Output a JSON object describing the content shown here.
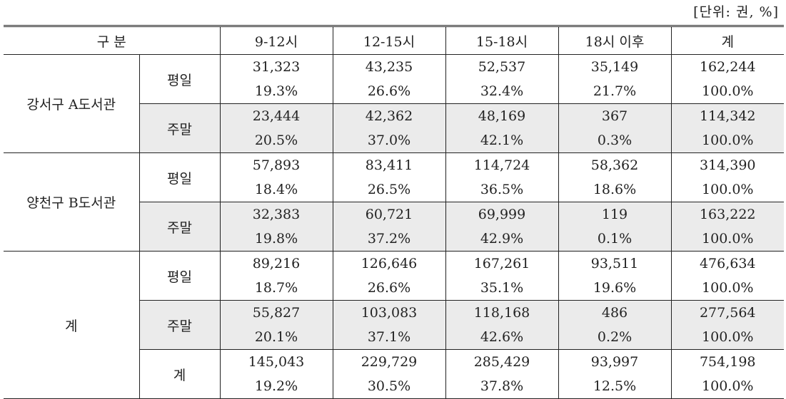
{
  "unit_note": "[단위: 권, %]",
  "header": {
    "group_col": "구 분",
    "columns": [
      "9-12시",
      "12-15시",
      "15-18시",
      "18시 이후",
      "계"
    ]
  },
  "groups": [
    {
      "name": "강서구 A도서관",
      "rows": [
        {
          "type": "평일",
          "counts": [
            "31,323",
            "43,235",
            "52,537",
            "35,149",
            "162,244"
          ],
          "pcts": [
            "19.3%",
            "26.6%",
            "32.4%",
            "21.7%",
            "100.0%"
          ]
        },
        {
          "type": "주말",
          "counts": [
            "23,444",
            "42,362",
            "48,169",
            "367",
            "114,342"
          ],
          "pcts": [
            "20.5%",
            "37.0%",
            "42.1%",
            "0.3%",
            "100.0%"
          ]
        }
      ]
    },
    {
      "name": "양천구 B도서관",
      "rows": [
        {
          "type": "평일",
          "counts": [
            "57,893",
            "83,411",
            "114,724",
            "58,362",
            "314,390"
          ],
          "pcts": [
            "18.4%",
            "26.5%",
            "36.5%",
            "18.6%",
            "100.0%"
          ]
        },
        {
          "type": "주말",
          "counts": [
            "32,383",
            "60,721",
            "69,999",
            "119",
            "163,222"
          ],
          "pcts": [
            "19.8%",
            "37.2%",
            "42.9%",
            "0.1%",
            "100.0%"
          ]
        }
      ]
    },
    {
      "name": "계",
      "rows": [
        {
          "type": "평일",
          "counts": [
            "89,216",
            "126,646",
            "167,261",
            "93,511",
            "476,634"
          ],
          "pcts": [
            "18.7%",
            "26.6%",
            "35.1%",
            "19.6%",
            "100.0%"
          ]
        },
        {
          "type": "주말",
          "counts": [
            "55,827",
            "103,083",
            "118,168",
            "486",
            "277,564"
          ],
          "pcts": [
            "20.1%",
            "37.1%",
            "42.6%",
            "0.2%",
            "100.0%"
          ]
        },
        {
          "type": "계",
          "counts": [
            "145,043",
            "229,729",
            "285,429",
            "93,997",
            "754,198"
          ],
          "pcts": [
            "19.2%",
            "30.5%",
            "37.8%",
            "12.5%",
            "100.0%"
          ]
        }
      ]
    }
  ]
}
